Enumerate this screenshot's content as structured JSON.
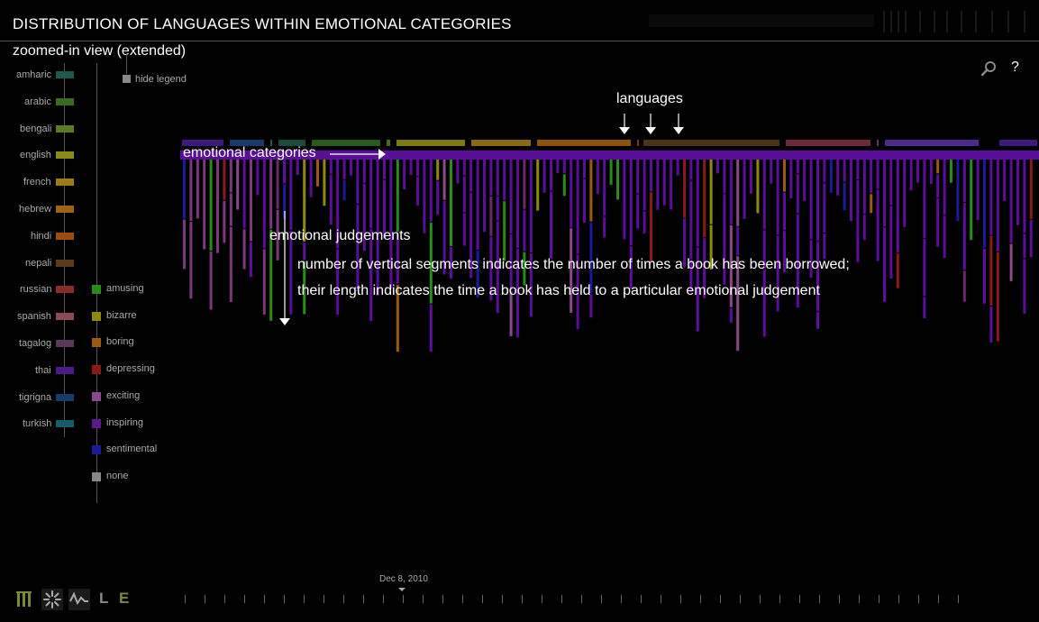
{
  "header": {
    "title": "DISTRIBUTION OF LANGUAGES WITHIN EMOTIONAL CATEGORIES",
    "subtitle": "zoomed-in view (extended)"
  },
  "controls": {
    "search_icon": "magnifier-icon",
    "help_label": "?",
    "hide_legend_label": "hide legend"
  },
  "languages_legend": [
    {
      "label": "amharic",
      "color": "#1d5a4c"
    },
    {
      "label": "arabic",
      "color": "#3a6b1e"
    },
    {
      "label": "bengali",
      "color": "#5c7a23"
    },
    {
      "label": "english",
      "color": "#8a8a1a"
    },
    {
      "label": "french",
      "color": "#9a7a1a"
    },
    {
      "label": "hebrew",
      "color": "#9a6414"
    },
    {
      "label": "hindi",
      "color": "#9a4c14"
    },
    {
      "label": "nepali",
      "color": "#5a3c1a"
    },
    {
      "label": "russian",
      "color": "#8a2a2a"
    },
    {
      "label": "spanish",
      "color": "#8a4a5a"
    },
    {
      "label": "tagalog",
      "color": "#5a3a5a"
    },
    {
      "label": "thai",
      "color": "#4a1a8a"
    },
    {
      "label": "tigrigna",
      "color": "#1a3a6a"
    },
    {
      "label": "turkish",
      "color": "#1a5a6a"
    }
  ],
  "emotions_legend": [
    {
      "label": "amusing",
      "color": "#2a8a1a"
    },
    {
      "label": "bizarre",
      "color": "#8a8a10"
    },
    {
      "label": "boring",
      "color": "#9a5a10"
    },
    {
      "label": "depressing",
      "color": "#8a1a1a"
    },
    {
      "label": "exciting",
      "color": "#8a4a8a"
    },
    {
      "label": "inspiring",
      "color": "#5a1a8a"
    },
    {
      "label": "sentimental",
      "color": "#1a1a9a"
    },
    {
      "label": "none",
      "color": "#888888"
    }
  ],
  "annotations": {
    "languages": "languages",
    "emotional_categories": "emotional categories",
    "emotional_judgements": "emotional judgements",
    "segments_line1": "number of vertical segments indicates the number of times a book has been borrowed;",
    "segments_line2": "their length indicates the time a book has held to a particular emotional judgement"
  },
  "timeline": {
    "date_label": "Dec 8, 2010"
  },
  "bottom_toolbar": {
    "items": [
      "bars-icon",
      "spinner-icon",
      "waveform-icon"
    ],
    "letter_l": "L",
    "letter_e": "E",
    "accent": "#7a8a3a"
  },
  "chart_data": {
    "type": "bar",
    "category_bar_color": "#5a0f9a",
    "language_segments": [
      {
        "language": "thai",
        "color": "#3a1a7a"
      },
      {
        "language": "tigrigna",
        "color": "#1a3a6a"
      },
      {
        "language": "turkish",
        "color": "#1a5a5a"
      },
      {
        "language": "amharic",
        "color": "#1d4a3c"
      },
      {
        "language": "arabic",
        "color": "#2a5a1a"
      },
      {
        "language": "bengali",
        "color": "#4c6a1a"
      },
      {
        "language": "english",
        "color": "#7a7a10"
      },
      {
        "language": "french",
        "color": "#8a6a10"
      },
      {
        "language": "hebrew",
        "color": "#8a5410"
      },
      {
        "language": "hindi",
        "color": "#7a3c14"
      },
      {
        "language": "nepali",
        "color": "#4a3418"
      },
      {
        "language": "russian",
        "color": "#6a2a3a"
      },
      {
        "language": "spanish",
        "color": "#5a3a6a"
      },
      {
        "language": "tagalog",
        "color": "#4a2a8a"
      }
    ]
  }
}
